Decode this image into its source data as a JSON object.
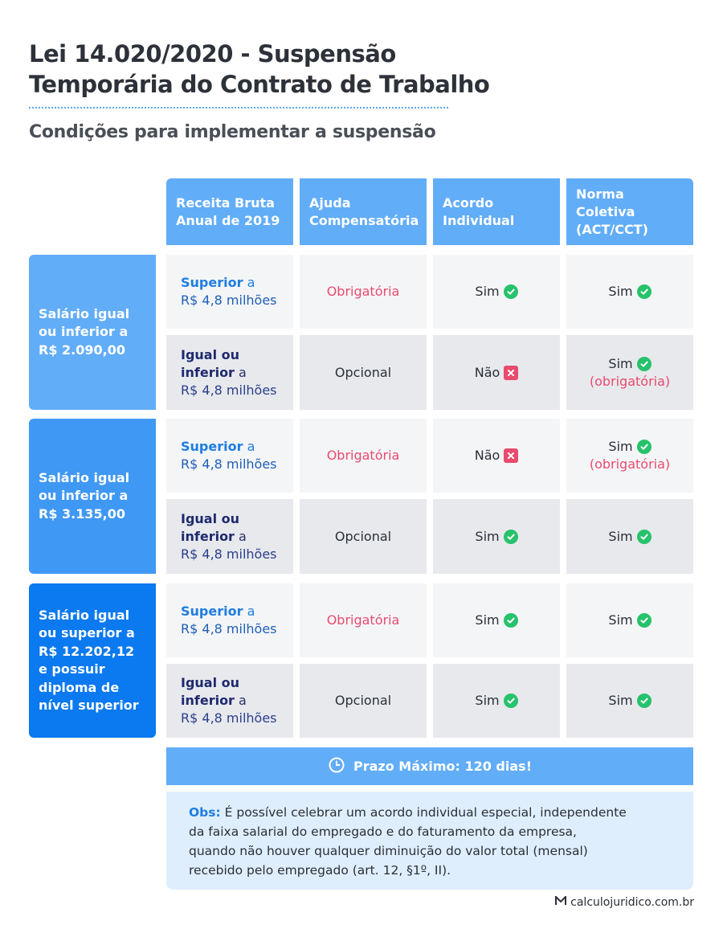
{
  "header": {
    "title_line1": "Lei 14.020/2020 - Suspensão",
    "title_line2": "Temporária do Contrato de Trabalho",
    "subtitle": "Condições para implementar a suspensão"
  },
  "table": {
    "columns": [
      "Receita Bruta Anual de 2019",
      "Ajuda Compensatória",
      "Acordo Individual",
      "Norma Coletiva (ACT/CCT)"
    ],
    "columns_lines": [
      [
        "Receita Bruta",
        "Anual de 2019"
      ],
      [
        "Ajuda",
        "Compensatória"
      ],
      [
        "Acordo",
        "Individual"
      ],
      [
        "Norma Coletiva",
        "(ACT/CCT)"
      ]
    ],
    "groups": [
      {
        "label_lines": [
          "Salário igual",
          "ou inferior a",
          "R$ 2.090,00"
        ],
        "rows": [
          {
            "rev_hi": [
              "Superior"
            ],
            "rev_rest": "a",
            "rev_amount": "R$ 4,8 milhões",
            "ajuda": "Obrigatória",
            "acordo": "Sim",
            "acordo_ok": true,
            "norma": "Sim",
            "norma_ok": true,
            "norma_note": ""
          },
          {
            "rev_hi": [
              "Igual ou",
              "inferior"
            ],
            "rev_rest": "a",
            "rev_amount": "R$ 4,8 milhões",
            "ajuda": "Opcional",
            "acordo": "Não",
            "acordo_ok": false,
            "norma": "Sim",
            "norma_ok": true,
            "norma_note": "(obrigatória)"
          }
        ]
      },
      {
        "label_lines": [
          "Salário igual",
          "ou inferior a",
          "R$ 3.135,00"
        ],
        "rows": [
          {
            "rev_hi": [
              "Superior"
            ],
            "rev_rest": "a",
            "rev_amount": "R$ 4,8 milhões",
            "ajuda": "Obrigatória",
            "acordo": "Não",
            "acordo_ok": false,
            "norma": "Sim",
            "norma_ok": true,
            "norma_note": "(obrigatória)"
          },
          {
            "rev_hi": [
              "Igual ou",
              "inferior"
            ],
            "rev_rest": "a",
            "rev_amount": "R$ 4,8 milhões",
            "ajuda": "Opcional",
            "acordo": "Sim",
            "acordo_ok": true,
            "norma": "Sim",
            "norma_ok": true,
            "norma_note": ""
          }
        ]
      },
      {
        "label_lines": [
          "Salário igual",
          "ou superior a",
          "R$ 12.202,12",
          "e possuir",
          "diploma de",
          "nível superior"
        ],
        "rows": [
          {
            "rev_hi": [
              "Superior"
            ],
            "rev_rest": "a",
            "rev_amount": "R$ 4,8 milhões",
            "ajuda": "Obrigatória",
            "acordo": "Sim",
            "acordo_ok": true,
            "norma": "Sim",
            "norma_ok": true,
            "norma_note": ""
          },
          {
            "rev_hi": [
              "Igual ou",
              "inferior"
            ],
            "rev_rest": "a",
            "rev_amount": "R$ 4,8 milhões",
            "ajuda": "Opcional",
            "acordo": "Sim",
            "acordo_ok": true,
            "norma": "Sim",
            "norma_ok": true,
            "norma_note": ""
          }
        ]
      }
    ]
  },
  "prazo": {
    "text": "Prazo Máximo: 120 dias!",
    "icon": "clock-icon"
  },
  "obs": {
    "label": "Obs:",
    "lines": [
      " É possível celebrar um acordo individual especial, independente",
      "da faixa salarial do empregado e do faturamento da empresa,",
      "quando não houver qualquer diminuição do valor total (mensal)",
      "recebido pelo empregado (art. 12, §1º, II)."
    ]
  },
  "footer": {
    "site": "calculojuridico.com.br",
    "icon": "logo-icon"
  },
  "colors": {
    "header_blue": "#62adf8",
    "group2_blue": "#3f98f4",
    "group3_blue": "#0b79ef",
    "pink": "#e84b6e",
    "green": "#27c26c",
    "obs_bg": "#dfeefd"
  }
}
